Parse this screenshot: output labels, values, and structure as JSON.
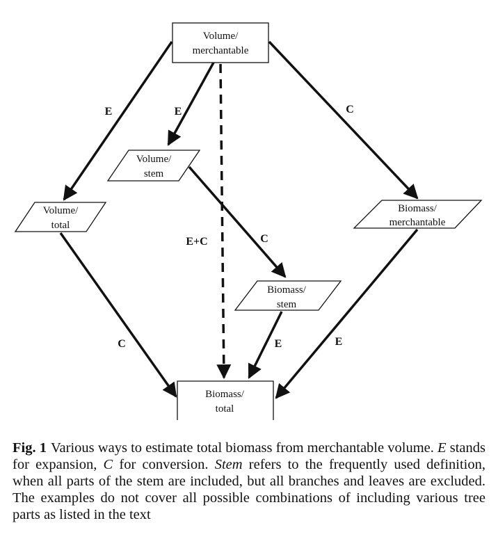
{
  "nodes": {
    "volume_merchantable": [
      "Volume/",
      "merchantable"
    ],
    "volume_stem": [
      "Volume/",
      "stem"
    ],
    "volume_total": [
      "Volume/",
      "total"
    ],
    "biomass_merchantable": [
      "Biomass/",
      "merchantable"
    ],
    "biomass_stem": [
      "Biomass/",
      "stem"
    ],
    "biomass_total": [
      "Biomass/",
      "total"
    ]
  },
  "edge_labels": {
    "vm_to_vt": "E",
    "vm_to_vs": "E",
    "vm_to_bm": "C",
    "vm_to_bt": "E+C",
    "vs_to_bs": "C",
    "vt_to_bt": "C",
    "bs_to_bt": "E",
    "bm_to_bt": "E"
  },
  "caption": {
    "label": "Fig. 1",
    "part1": "Various ways to estimate total biomass from merchantable volume. ",
    "e_symbol": "E",
    "part2": " stands for expansion, ",
    "c_symbol": "C",
    "part3": " for conversion. ",
    "stem_word": "Stem",
    "part4": " refers to the frequently used definition, when all parts of the stem are included, but all branches and leaves are excluded. The examples do not cover all possible combinations of including various tree parts as listed in the text"
  }
}
